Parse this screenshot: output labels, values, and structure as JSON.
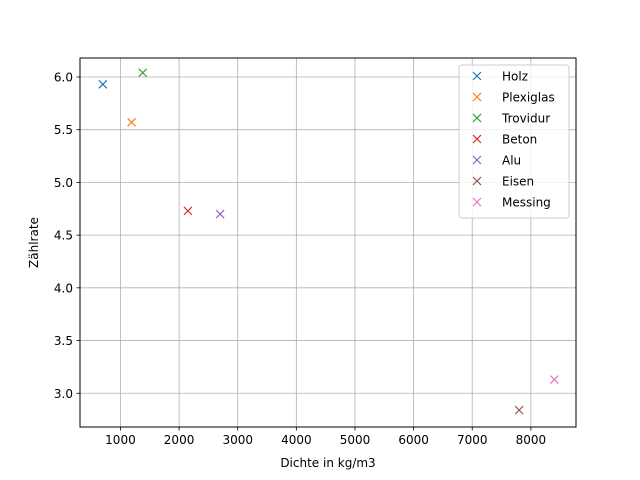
{
  "chart_data": {
    "type": "scatter",
    "title": "",
    "xlabel": "Dichte in kg/m3",
    "ylabel": "Zählrate",
    "xlim": [
      310,
      8770
    ],
    "ylim": [
      2.68,
      6.18
    ],
    "xticks": [
      1000,
      2000,
      3000,
      4000,
      5000,
      6000,
      7000,
      8000
    ],
    "yticks": [
      3.0,
      3.5,
      4.0,
      4.5,
      5.0,
      5.5,
      6.0
    ],
    "grid": true,
    "marker": "x",
    "legend_position": "top-right",
    "series": [
      {
        "name": "Holz",
        "color": "#1f77b4",
        "points": [
          [
            700,
            5.93
          ]
        ]
      },
      {
        "name": "Plexiglas",
        "color": "#ff7f0e",
        "points": [
          [
            1190,
            5.57
          ]
        ]
      },
      {
        "name": "Trovidur",
        "color": "#2ca02c",
        "points": [
          [
            1380,
            6.04
          ]
        ]
      },
      {
        "name": "Beton",
        "color": "#d62728",
        "points": [
          [
            2150,
            4.73
          ]
        ]
      },
      {
        "name": "Alu",
        "color": "#9467bd",
        "points": [
          [
            2700,
            4.7
          ]
        ]
      },
      {
        "name": "Eisen",
        "color": "#8c564b",
        "points": [
          [
            7800,
            2.84
          ]
        ]
      },
      {
        "name": "Messing",
        "color": "#e377c2",
        "points": [
          [
            8400,
            3.13
          ]
        ]
      }
    ]
  }
}
